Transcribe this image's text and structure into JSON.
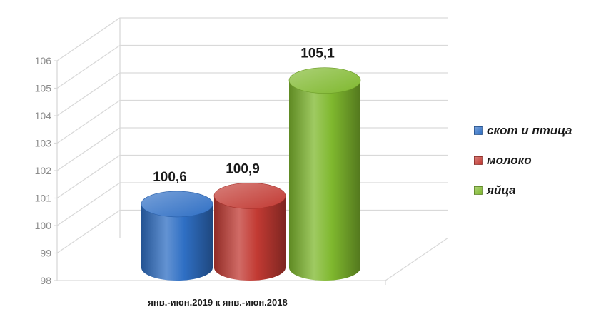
{
  "chart_data": {
    "type": "bar",
    "categories": [
      "янв.-июн.2019 к янв.-июн.2018"
    ],
    "series": [
      {
        "name": "скот и птица",
        "values": [
          100.6
        ],
        "label": "100,6",
        "color": "#2f6fc4"
      },
      {
        "name": "молоко",
        "values": [
          100.9
        ],
        "label": "100,9",
        "color": "#c23a33"
      },
      {
        "name": "яйца",
        "values": [
          105.1
        ],
        "label": "105,1",
        "color": "#7fb82e"
      }
    ],
    "title": "",
    "xlabel": "янв.-июн.2019 к янв.-июн.2018",
    "ylabel": "",
    "ylim": [
      98,
      106
    ],
    "yticks": [
      "98",
      "99",
      "100",
      "101",
      "102",
      "103",
      "104",
      "105",
      "106"
    ],
    "grid": true,
    "three_d": true,
    "legend_position": "right"
  }
}
